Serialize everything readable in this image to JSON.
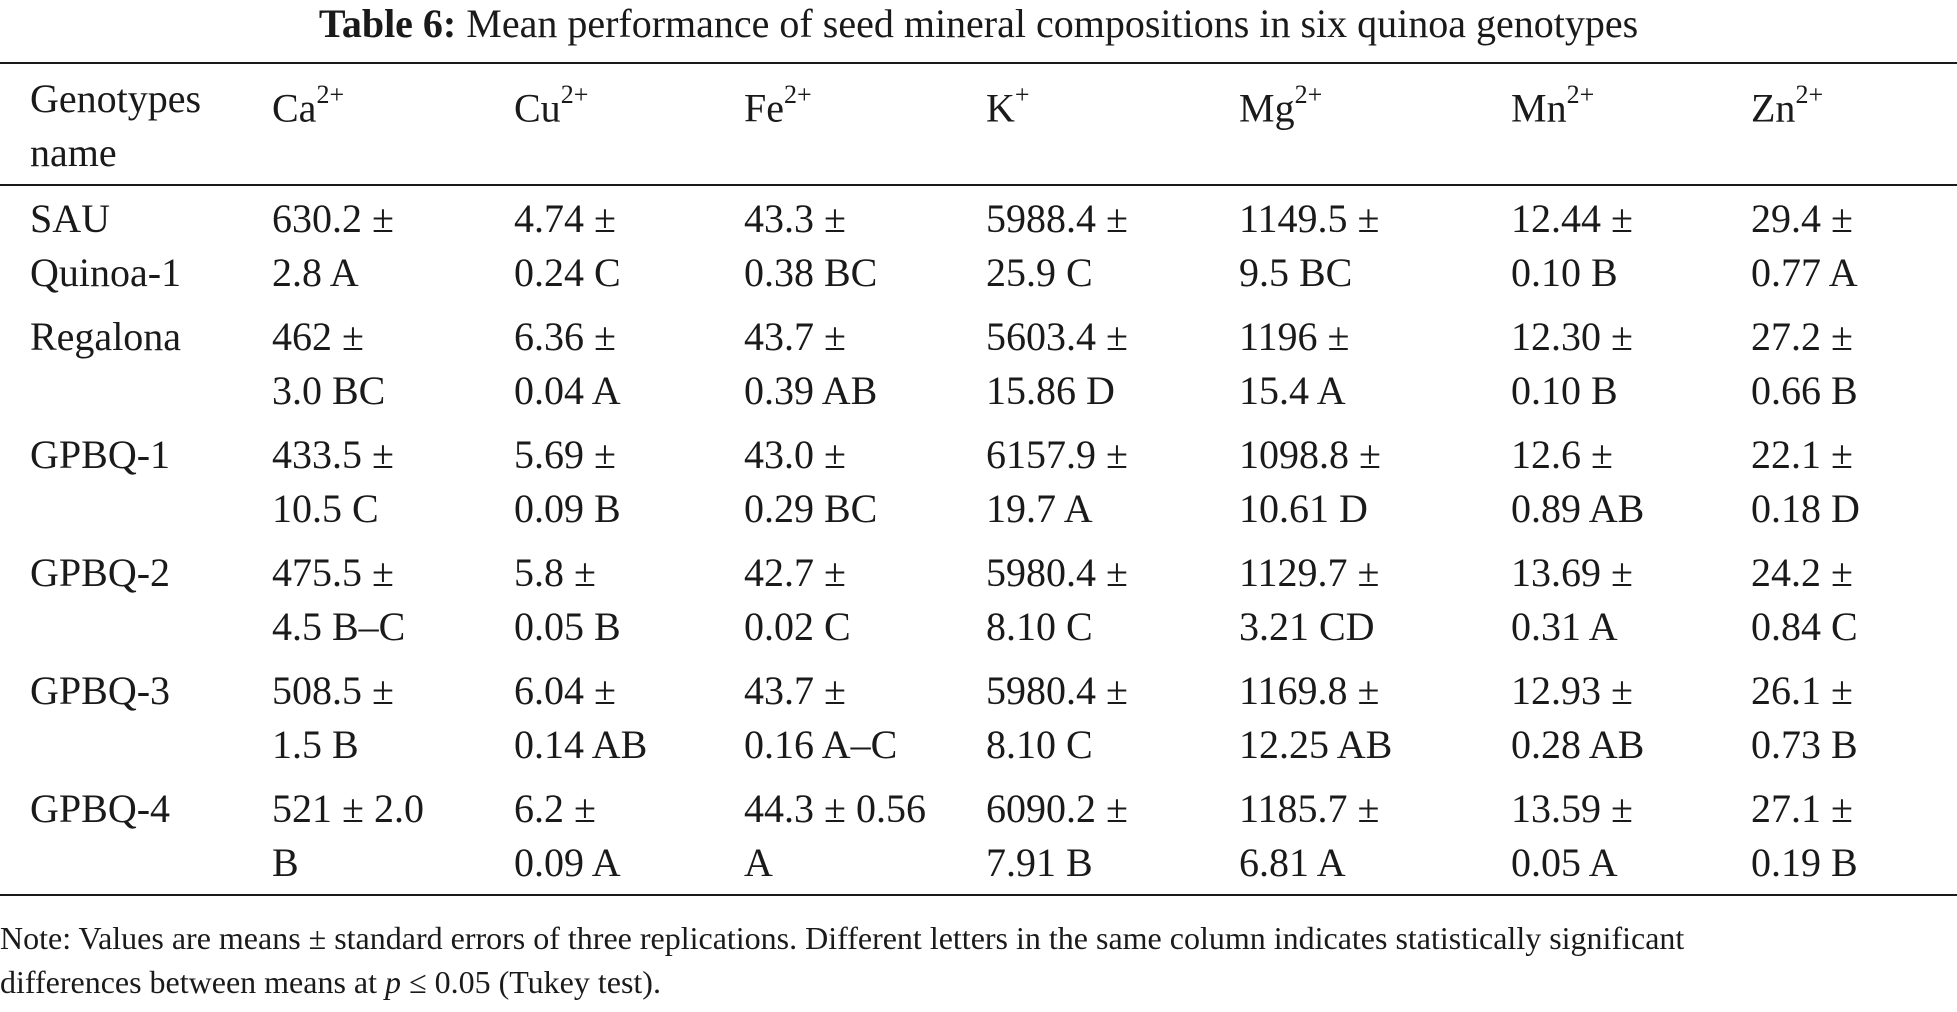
{
  "caption": {
    "label": "Table 6:",
    "text": "Mean performance of seed mineral compositions in six quinoa genotypes"
  },
  "table": {
    "header": {
      "genotypes": "Genotypes name",
      "columns": [
        {
          "element": "Ca",
          "charge": "2+"
        },
        {
          "element": "Cu",
          "charge": "2+"
        },
        {
          "element": "Fe",
          "charge": "2+"
        },
        {
          "element": "K",
          "charge": "+"
        },
        {
          "element": "Mg",
          "charge": "2+"
        },
        {
          "element": "Mn",
          "charge": "2+"
        },
        {
          "element": "Zn",
          "charge": "2+"
        }
      ]
    },
    "rows": [
      {
        "name": "SAU\nQuinoa-1",
        "cells": [
          "630.2 ±\n2.8 A",
          "4.74 ±\n0.24 C",
          "43.3 ±\n0.38 BC",
          "5988.4 ±\n25.9 C",
          "1149.5 ±\n9.5 BC",
          "12.44 ±\n0.10 B",
          "29.4 ±\n0.77 A"
        ]
      },
      {
        "name": "Regalona",
        "cells": [
          "462 ±\n3.0 BC",
          "6.36 ±\n0.04 A",
          "43.7 ±\n0.39 AB",
          "5603.4 ±\n15.86 D",
          "1196 ±\n15.4 A",
          "12.30 ±\n0.10 B",
          "27.2 ±\n0.66 B"
        ]
      },
      {
        "name": "GPBQ-1",
        "cells": [
          "433.5 ±\n10.5 C",
          "5.69 ±\n0.09 B",
          "43.0 ±\n0.29 BC",
          "6157.9 ±\n19.7 A",
          "1098.8 ±\n10.61 D",
          "12.6 ±\n0.89 AB",
          "22.1 ±\n0.18 D"
        ]
      },
      {
        "name": "GPBQ-2",
        "cells": [
          "475.5 ±\n4.5 B–C",
          "5.8 ±\n0.05 B",
          "42.7 ±\n0.02 C",
          "5980.4 ±\n8.10 C",
          "1129.7 ±\n3.21 CD",
          "13.69 ±\n0.31 A",
          "24.2 ±\n0.84 C"
        ]
      },
      {
        "name": "GPBQ-3",
        "cells": [
          "508.5 ±\n1.5 B",
          "6.04 ±\n0.14 AB",
          "43.7 ±\n0.16 A–C",
          "5980.4 ±\n8.10 C",
          "1169.8 ±\n12.25 AB",
          "12.93 ±\n0.28 AB",
          "26.1 ±\n0.73 B"
        ]
      },
      {
        "name": "GPBQ-4",
        "cells": [
          "521 ± 2.0\nB",
          "6.2 ±\n0.09 A",
          "44.3 ± 0.56\n A",
          "6090.2 ±\n7.91 B",
          "1185.7 ±\n6.81 A",
          "13.59 ±\n0.05 A",
          "27.1 ±\n0.19 B"
        ]
      }
    ]
  },
  "note": {
    "line1": "Note: Values are means ± standard errors of three replications. Different letters in the same column indicates statistically significant",
    "line2_before": "differences between means at ",
    "line2_var": "p",
    "line2_after": " ≤ 0.05 (Tukey test)."
  }
}
